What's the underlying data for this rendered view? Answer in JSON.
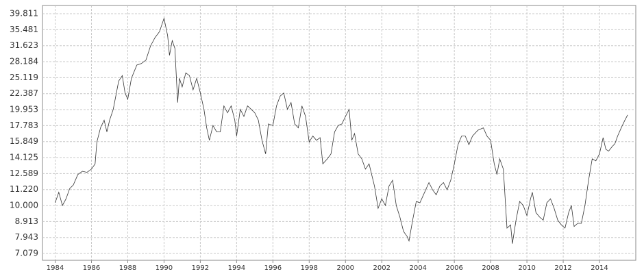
{
  "chart_data": {
    "type": "line",
    "log_y": true,
    "grid": true,
    "color": "#333333",
    "x": [
      1984.0,
      1984.2,
      1984.4,
      1984.6,
      1984.8,
      1985.0,
      1985.25,
      1985.5,
      1985.75,
      1986.0,
      1986.2,
      1986.3,
      1986.5,
      1986.7,
      1986.85,
      1987.0,
      1987.2,
      1987.5,
      1987.7,
      1987.85,
      1988.0,
      1988.2,
      1988.5,
      1988.75,
      1989.0,
      1989.25,
      1989.5,
      1989.75,
      1990.0,
      1990.2,
      1990.3,
      1990.45,
      1990.6,
      1990.75,
      1990.85,
      1991.0,
      1991.2,
      1991.4,
      1991.6,
      1991.8,
      1992.0,
      1992.2,
      1992.35,
      1992.5,
      1992.7,
      1992.9,
      1993.1,
      1993.3,
      1993.5,
      1993.7,
      1993.9,
      1994.0,
      1994.2,
      1994.4,
      1994.6,
      1994.8,
      1995.0,
      1995.2,
      1995.4,
      1995.6,
      1995.75,
      1996.0,
      1996.2,
      1996.4,
      1996.6,
      1996.8,
      1997.0,
      1997.2,
      1997.4,
      1997.6,
      1997.8,
      1998.0,
      1998.2,
      1998.4,
      1998.6,
      1998.75,
      1999.0,
      1999.2,
      1999.4,
      1999.6,
      1999.8,
      2000.0,
      2000.2,
      2000.35,
      2000.5,
      2000.7,
      2000.9,
      2001.1,
      2001.3,
      2001.6,
      2001.8,
      2002.0,
      2002.2,
      2002.4,
      2002.6,
      2002.8,
      2003.0,
      2003.2,
      2003.4,
      2003.5,
      2003.7,
      2003.9,
      2004.1,
      2004.3,
      2004.6,
      2004.8,
      2005.0,
      2005.2,
      2005.4,
      2005.6,
      2005.8,
      2006.0,
      2006.2,
      2006.4,
      2006.6,
      2006.8,
      2007.0,
      2007.3,
      2007.6,
      2007.8,
      2008.0,
      2008.2,
      2008.35,
      2008.5,
      2008.7,
      2008.9,
      2009.1,
      2009.2,
      2009.4,
      2009.6,
      2009.8,
      2010.0,
      2010.2,
      2010.3,
      2010.5,
      2010.7,
      2010.9,
      2011.1,
      2011.3,
      2011.5,
      2011.7,
      2011.9,
      2012.1,
      2012.3,
      2012.45,
      2012.6,
      2012.8,
      2013.0,
      2013.2,
      2013.4,
      2013.6,
      2013.8,
      2014.0,
      2014.2,
      2014.35,
      2014.5,
      2014.7,
      2014.85,
      2015.0,
      2015.2,
      2015.4,
      2015.55
    ],
    "values": [
      10.2,
      11.0,
      10.0,
      10.5,
      11.3,
      11.6,
      12.5,
      12.8,
      12.7,
      13.0,
      13.5,
      15.8,
      17.5,
      18.5,
      17.0,
      18.5,
      20.0,
      24.5,
      25.5,
      22.5,
      21.5,
      25,
      27.5,
      27.8,
      28.5,
      31.5,
      33.5,
      35,
      38.5,
      34,
      29.5,
      32.8,
      31,
      21,
      25,
      23.5,
      26,
      25.5,
      23,
      25,
      22.5,
      20,
      17.5,
      16,
      17.8,
      17,
      17,
      20.5,
      19.5,
      20.5,
      18.5,
      16.5,
      20,
      19,
      20.5,
      20,
      19.5,
      18.5,
      16,
      14.5,
      18,
      17.8,
      20.5,
      22,
      22.5,
      20,
      21,
      18,
      17.5,
      20.5,
      19,
      15.8,
      16.5,
      16,
      16.3,
      13.5,
      14,
      14.5,
      17,
      17.8,
      18,
      19,
      20,
      16,
      16.8,
      14.5,
      14,
      13,
      13.5,
      11.5,
      9.8,
      10.5,
      10,
      11.5,
      12,
      10,
      9.2,
      8.3,
      8.0,
      7.75,
      9,
      10.3,
      10.2,
      10.8,
      11.8,
      11.2,
      10.8,
      11.5,
      11.8,
      11.2,
      12,
      13.5,
      15.5,
      16.5,
      16.5,
      15.5,
      16.5,
      17.2,
      17.5,
      16.5,
      16,
      13.5,
      12.5,
      14,
      13,
      8.5,
      8.7,
      7.6,
      9,
      10.3,
      10,
      9.3,
      10.5,
      11,
      9.5,
      9.2,
      9,
      10.2,
      10.5,
      9.8,
      9,
      8.7,
      8.5,
      9.5,
      10,
      8.6,
      8.8,
      8.8,
      10,
      12,
      14,
      13.8,
      14.5,
      16.3,
      15,
      14.8,
      15.3,
      15.6,
      16.5,
      17.5,
      18.5,
      19.2
    ],
    "xlim": [
      1983.3,
      2016.0
    ],
    "xticks": [
      1984,
      1986,
      1988,
      1990,
      1992,
      1994,
      1996,
      1998,
      2000,
      2002,
      2004,
      2006,
      2008,
      2010,
      2012,
      2014
    ],
    "ylim": [
      6.74,
      42.25
    ],
    "yticks": [
      7.079,
      7.943,
      8.913,
      {
        "value": 10,
        "label": "10.000"
      },
      {
        "value": 11.22,
        "label": "11.220"
      },
      12.589,
      14.125,
      15.849,
      17.783,
      19.953,
      22.387,
      25.119,
      28.184,
      31.623,
      35.481,
      39.811
    ]
  }
}
